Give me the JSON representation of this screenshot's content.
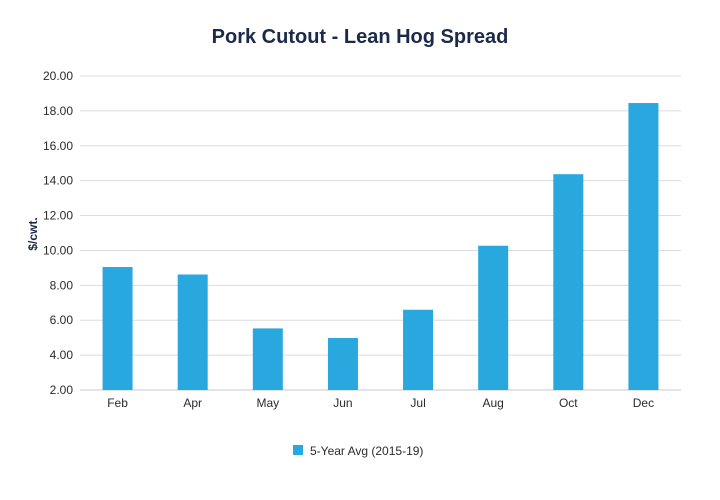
{
  "chart_data": {
    "type": "bar",
    "title": "Pork Cutout - Lean Hog Spread",
    "xlabel": "",
    "ylabel": "$/cwt.",
    "categories": [
      "Feb",
      "Apr",
      "May",
      "Jun",
      "Jul",
      "Aug",
      "Oct",
      "Dec"
    ],
    "series": [
      {
        "name": "5-Year Avg (2015-19)",
        "values": [
          9.05,
          8.62,
          5.53,
          4.98,
          6.6,
          10.27,
          14.37,
          18.45
        ],
        "color": "#29a8df"
      }
    ],
    "ylim": [
      2.0,
      20.0
    ],
    "yticks": [
      "2.00",
      "4.00",
      "6.00",
      "8.00",
      "10.00",
      "12.00",
      "14.00",
      "16.00",
      "18.00",
      "20.00"
    ],
    "grid": true,
    "legend": "bottom-center"
  }
}
